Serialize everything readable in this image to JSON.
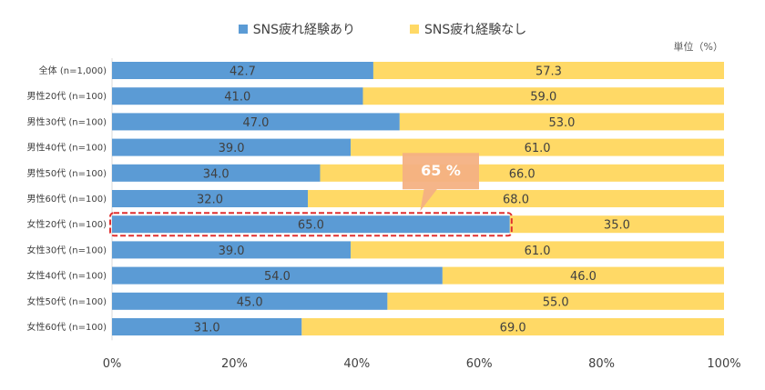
{
  "chart_data": {
    "type": "bar",
    "orientation": "horizontal-stacked-100",
    "unit_label": "単位（%）",
    "categories": [
      "全体 (n=1,000)",
      "男性20代 (n=100)",
      "男性30代 (n=100)",
      "男性40代 (n=100)",
      "男性50代 (n=100)",
      "男性60代 (n=100)",
      "女性20代 (n=100)",
      "女性30代 (n=100)",
      "女性40代 (n=100)",
      "女性50代 (n=100)",
      "女性60代 (n=100)"
    ],
    "series": [
      {
        "name": "SNS疲れ経験あり",
        "color": "#5b9bd5",
        "values": [
          42.7,
          41.0,
          47.0,
          39.0,
          34.0,
          32.0,
          65.0,
          39.0,
          54.0,
          45.0,
          31.0
        ]
      },
      {
        "name": "SNS疲れ経験なし",
        "color": "#ffd966",
        "values": [
          57.3,
          59.0,
          53.0,
          61.0,
          66.0,
          68.0,
          35.0,
          61.0,
          46.0,
          55.0,
          69.0
        ]
      }
    ],
    "x_ticks": [
      "0%",
      "20%",
      "40%",
      "60%",
      "80%",
      "100%"
    ],
    "xlim": [
      0,
      100
    ],
    "legend_position": "top-center",
    "grid": false,
    "annotation": {
      "text": "65 %",
      "target_category": "女性20代 (n=100)",
      "callout_color": "#f4b183",
      "highlight_color": "#e03030"
    }
  }
}
